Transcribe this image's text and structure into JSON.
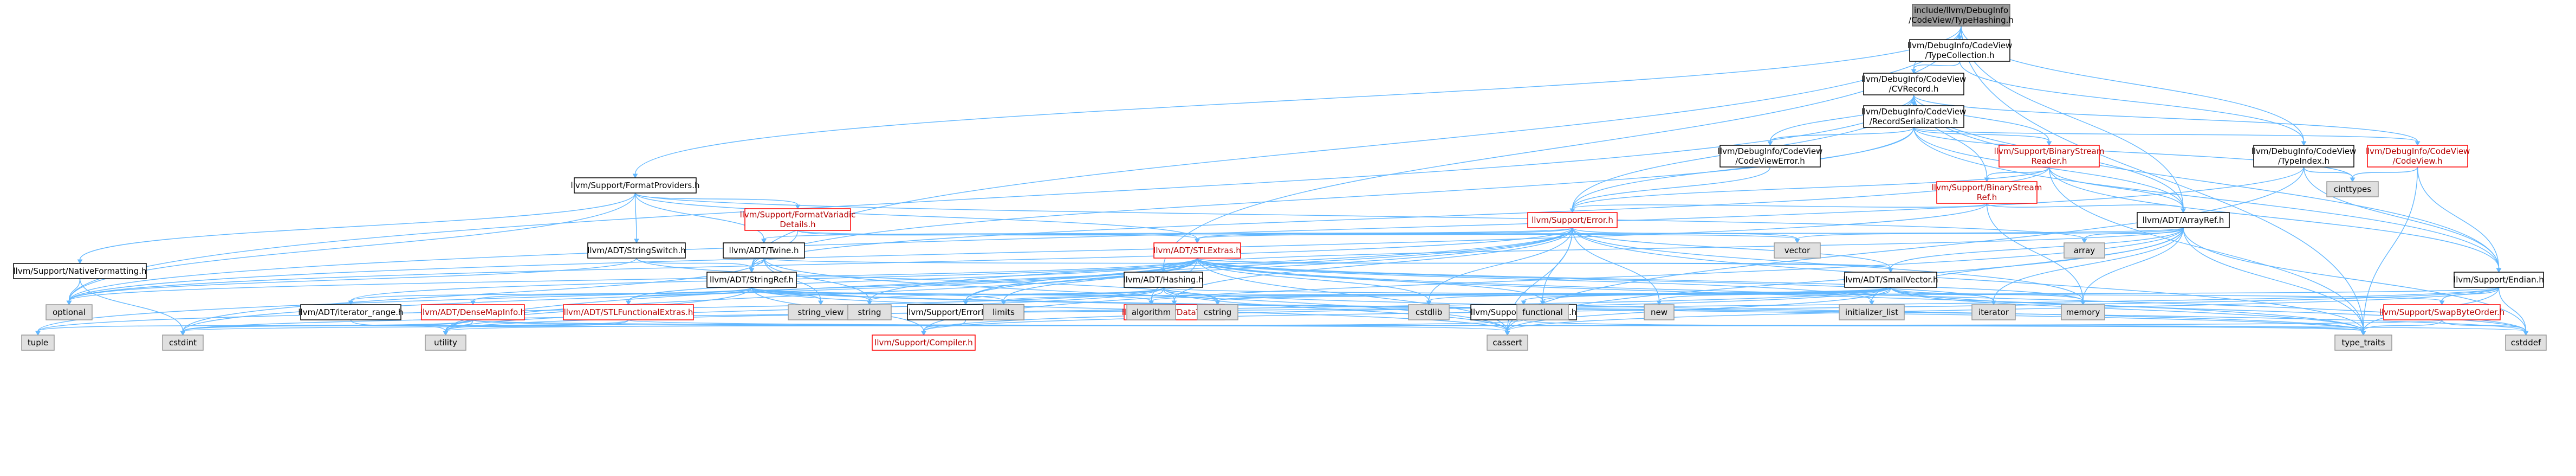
{
  "colors": {
    "edge": "#63b8ff",
    "root_fill": "#999999",
    "node_fill": "#ffffff",
    "node_border": "#000000",
    "ext_fill": "#e0e0e0",
    "ext_border": "#999999",
    "missing_border": "#ff0000",
    "missing_text": "#b60000"
  },
  "nodes": [
    {
      "id": "root",
      "lines": [
        "include/llvm/DebugInfo",
        "/CodeView/TypeHashing.h"
      ],
      "style": "root"
    },
    {
      "id": "typecollection",
      "lines": [
        "llvm/DebugInfo/CodeView",
        "/TypeCollection.h"
      ],
      "style": "normal"
    },
    {
      "id": "cvrecord",
      "lines": [
        "llvm/DebugInfo/CodeView",
        "/CVRecord.h"
      ],
      "style": "normal"
    },
    {
      "id": "recordser",
      "lines": [
        "llvm/DebugInfo/CodeView",
        "/RecordSerialization.h"
      ],
      "style": "normal"
    },
    {
      "id": "codevieweerror",
      "lines": [
        "llvm/DebugInfo/CodeView",
        "/CodeViewError.h"
      ],
      "style": "normal"
    },
    {
      "id": "bsreader",
      "lines": [
        "llvm/Support/BinaryStream",
        "Reader.h"
      ],
      "style": "missing"
    },
    {
      "id": "codeview",
      "lines": [
        "llvm/DebugInfo/CodeView",
        "/CodeView.h"
      ],
      "style": "missing"
    },
    {
      "id": "typeindex",
      "lines": [
        "llvm/DebugInfo/CodeView",
        "/TypeIndex.h"
      ],
      "style": "normal"
    },
    {
      "id": "bsref",
      "lines": [
        "llvm/Support/BinaryStream",
        "Ref.h"
      ],
      "style": "missing"
    },
    {
      "id": "formatproviders",
      "lines": [
        "llvm/Support/FormatProviders.h"
      ],
      "style": "normal"
    },
    {
      "id": "formatvariadic",
      "lines": [
        "llvm/Support/FormatVariadic",
        "Details.h"
      ],
      "style": "missing"
    },
    {
      "id": "error",
      "lines": [
        "llvm/Support/Error.h"
      ],
      "style": "missing"
    },
    {
      "id": "arrayref",
      "lines": [
        "llvm/ADT/ArrayRef.h"
      ],
      "style": "normal"
    },
    {
      "id": "stringswitch",
      "lines": [
        "llvm/ADT/StringSwitch.h"
      ],
      "style": "normal"
    },
    {
      "id": "twine",
      "lines": [
        "llvm/ADT/Twine.h"
      ],
      "style": "normal"
    },
    {
      "id": "stlextras",
      "lines": [
        "llvm/ADT/STLExtras.h"
      ],
      "style": "missing"
    },
    {
      "id": "nativeformatting",
      "lines": [
        "llvm/Support/NativeFormatting.h"
      ],
      "style": "normal"
    },
    {
      "id": "stringref",
      "lines": [
        "llvm/ADT/StringRef.h"
      ],
      "style": "normal"
    },
    {
      "id": "hashing",
      "lines": [
        "llvm/ADT/Hashing.h"
      ],
      "style": "normal"
    },
    {
      "id": "smallvector",
      "lines": [
        "llvm/ADT/SmallVector.h"
      ],
      "style": "normal"
    },
    {
      "id": "endian",
      "lines": [
        "llvm/Support/Endian.h"
      ],
      "style": "normal"
    },
    {
      "id": "iterator_range",
      "lines": [
        "llvm/ADT/iterator_range.h"
      ],
      "style": "normal"
    },
    {
      "id": "densemapinfo",
      "lines": [
        "llvm/ADT/DenseMapInfo.h"
      ],
      "style": "missing"
    },
    {
      "id": "stlfunctional",
      "lines": [
        "llvm/ADT/STLFunctionalExtras.h"
      ],
      "style": "missing"
    },
    {
      "id": "errorhandling",
      "lines": [
        "llvm/Support/ErrorHandling.h"
      ],
      "style": "normal"
    },
    {
      "id": "datatypes",
      "lines": [
        "llvm/Support/DataTypes.h"
      ],
      "style": "missing"
    },
    {
      "id": "typetraits_llvm",
      "lines": [
        "llvm/Support/type_traits.h"
      ],
      "style": "normal"
    },
    {
      "id": "swapbyteorder",
      "lines": [
        "llvm/Support/SwapByteOrder.h"
      ],
      "style": "missing"
    },
    {
      "id": "compiler",
      "lines": [
        "llvm/Support/Compiler.h"
      ],
      "style": "missing"
    },
    {
      "id": "cinttypes",
      "lines": [
        "cinttypes"
      ],
      "style": "ext"
    },
    {
      "id": "vector",
      "lines": [
        "vector"
      ],
      "style": "ext"
    },
    {
      "id": "array",
      "lines": [
        "array"
      ],
      "style": "ext"
    },
    {
      "id": "optional",
      "lines": [
        "optional"
      ],
      "style": "ext"
    },
    {
      "id": "string_view",
      "lines": [
        "string_view"
      ],
      "style": "ext"
    },
    {
      "id": "string",
      "lines": [
        "string"
      ],
      "style": "ext"
    },
    {
      "id": "limits",
      "lines": [
        "limits"
      ],
      "style": "ext"
    },
    {
      "id": "algorithm",
      "lines": [
        "algorithm"
      ],
      "style": "ext"
    },
    {
      "id": "cstring",
      "lines": [
        "cstring"
      ],
      "style": "ext"
    },
    {
      "id": "cstdlib",
      "lines": [
        "cstdlib"
      ],
      "style": "ext"
    },
    {
      "id": "functional",
      "lines": [
        "functional"
      ],
      "style": "ext"
    },
    {
      "id": "new",
      "lines": [
        "new"
      ],
      "style": "ext"
    },
    {
      "id": "initializer_list",
      "lines": [
        "initializer_list"
      ],
      "style": "ext"
    },
    {
      "id": "iterator",
      "lines": [
        "iterator"
      ],
      "style": "ext"
    },
    {
      "id": "memory",
      "lines": [
        "memory"
      ],
      "style": "ext"
    },
    {
      "id": "tuple",
      "lines": [
        "tuple"
      ],
      "style": "ext"
    },
    {
      "id": "cstdint",
      "lines": [
        "cstdint"
      ],
      "style": "ext"
    },
    {
      "id": "utility",
      "lines": [
        "utility"
      ],
      "style": "ext"
    },
    {
      "id": "cassert",
      "lines": [
        "cassert"
      ],
      "style": "ext"
    },
    {
      "id": "type_traits",
      "lines": [
        "type_traits"
      ],
      "style": "ext"
    },
    {
      "id": "cstddef",
      "lines": [
        "cstddef"
      ],
      "style": "ext"
    }
  ],
  "edges": [
    [
      "root",
      "typecollection"
    ],
    [
      "root",
      "cvrecord"
    ],
    [
      "root",
      "typeindex"
    ],
    [
      "root",
      "formatproviders"
    ],
    [
      "root",
      "arrayref"
    ],
    [
      "root",
      "hashing"
    ],
    [
      "root",
      "stringref"
    ],
    [
      "root",
      "type_traits"
    ],
    [
      "typecollection",
      "cvrecord"
    ],
    [
      "typecollection",
      "typeindex"
    ],
    [
      "cvrecord",
      "recordser"
    ],
    [
      "cvrecord",
      "codevieweerror"
    ],
    [
      "cvrecord",
      "codeview"
    ],
    [
      "cvrecord",
      "bsreader"
    ],
    [
      "cvrecord",
      "bsref"
    ],
    [
      "cvrecord",
      "error"
    ],
    [
      "cvrecord",
      "arrayref"
    ],
    [
      "cvrecord",
      "endian"
    ],
    [
      "cvrecord",
      "optional"
    ],
    [
      "recordser",
      "codevieweerror"
    ],
    [
      "recordser",
      "codeview"
    ],
    [
      "recordser",
      "bsreader"
    ],
    [
      "recordser",
      "error"
    ],
    [
      "recordser",
      "arrayref"
    ],
    [
      "recordser",
      "stringref"
    ],
    [
      "recordser",
      "endian"
    ],
    [
      "recordser",
      "cinttypes"
    ],
    [
      "codevieweerror",
      "error"
    ],
    [
      "bsreader",
      "bsref"
    ],
    [
      "bsreader",
      "error"
    ],
    [
      "bsreader",
      "arrayref"
    ],
    [
      "bsreader",
      "endian"
    ],
    [
      "bsreader",
      "type_traits"
    ],
    [
      "bsreader",
      "stringref"
    ],
    [
      "codeview",
      "endian"
    ],
    [
      "codeview",
      "cinttypes"
    ],
    [
      "codeview",
      "type_traits"
    ],
    [
      "typeindex",
      "endian"
    ],
    [
      "typeindex",
      "cinttypes"
    ],
    [
      "typeindex",
      "cassert"
    ],
    [
      "typeindex",
      "optional"
    ],
    [
      "bsref",
      "arrayref"
    ],
    [
      "bsref",
      "error"
    ],
    [
      "bsref",
      "memory"
    ],
    [
      "bsref",
      "optional"
    ],
    [
      "formatproviders",
      "formatvariadic"
    ],
    [
      "formatproviders",
      "nativeformatting"
    ],
    [
      "formatproviders",
      "stringswitch"
    ],
    [
      "formatproviders",
      "twine"
    ],
    [
      "formatproviders",
      "stlextras"
    ],
    [
      "formatproviders",
      "array"
    ],
    [
      "formatproviders",
      "optional"
    ],
    [
      "formatvariadic",
      "stlextras"
    ],
    [
      "formatvariadic",
      "stringref"
    ],
    [
      "formatvariadic",
      "vector"
    ],
    [
      "error",
      "stlextras"
    ],
    [
      "error",
      "smallvector"
    ],
    [
      "error",
      "twine"
    ],
    [
      "error",
      "errorhandling"
    ],
    [
      "error",
      "string"
    ],
    [
      "error",
      "vector"
    ],
    [
      "error",
      "memory"
    ],
    [
      "error",
      "functional"
    ],
    [
      "error",
      "cstdlib"
    ],
    [
      "error",
      "new"
    ],
    [
      "error",
      "cassert"
    ],
    [
      "error",
      "optional"
    ],
    [
      "error",
      "type_traits"
    ],
    [
      "error",
      "utility"
    ],
    [
      "error",
      "datatypes"
    ],
    [
      "arrayref",
      "hashing"
    ],
    [
      "arrayref",
      "smallvector"
    ],
    [
      "arrayref",
      "stlextras"
    ],
    [
      "arrayref",
      "array"
    ],
    [
      "arrayref",
      "vector"
    ],
    [
      "arrayref",
      "iterator"
    ],
    [
      "arrayref",
      "memory"
    ],
    [
      "arrayref",
      "cassert"
    ],
    [
      "arrayref",
      "cstddef"
    ],
    [
      "arrayref",
      "initializer_list"
    ],
    [
      "arrayref",
      "type_traits"
    ],
    [
      "arrayref",
      "compiler"
    ],
    [
      "stringswitch",
      "stringref"
    ],
    [
      "stringswitch",
      "optional"
    ],
    [
      "stringswitch",
      "cstring"
    ],
    [
      "twine",
      "smallvector"
    ],
    [
      "twine",
      "stringref"
    ],
    [
      "twine",
      "string"
    ],
    [
      "twine",
      "string_view"
    ],
    [
      "twine",
      "cassert"
    ],
    [
      "twine",
      "cstdint"
    ],
    [
      "stlextras",
      "hashing"
    ],
    [
      "stlextras",
      "iterator_range"
    ],
    [
      "stlextras",
      "stlfunctional"
    ],
    [
      "stlextras",
      "errorhandling"
    ],
    [
      "stlextras",
      "algorithm"
    ],
    [
      "stlextras",
      "cassert"
    ],
    [
      "stlextras",
      "cstddef"
    ],
    [
      "stlextras",
      "cstdint"
    ],
    [
      "stlextras",
      "cstdlib"
    ],
    [
      "stlextras",
      "functional"
    ],
    [
      "stlextras",
      "initializer_list"
    ],
    [
      "stlextras",
      "iterator"
    ],
    [
      "stlextras",
      "limits"
    ],
    [
      "stlextras",
      "memory"
    ],
    [
      "stlextras",
      "optional"
    ],
    [
      "stlextras",
      "tuple"
    ],
    [
      "stlextras",
      "type_traits"
    ],
    [
      "stlextras",
      "utility"
    ],
    [
      "stlextras",
      "smallvector"
    ],
    [
      "nativeformatting",
      "cstdint"
    ],
    [
      "nativeformatting",
      "optional"
    ],
    [
      "stringref",
      "densemapinfo"
    ],
    [
      "stringref",
      "iterator_range"
    ],
    [
      "stringref",
      "stlfunctional"
    ],
    [
      "stringref",
      "compiler"
    ],
    [
      "stringref",
      "algorithm"
    ],
    [
      "stringref",
      "cassert"
    ],
    [
      "stringref",
      "cstddef"
    ],
    [
      "stringref",
      "cstring"
    ],
    [
      "stringref",
      "limits"
    ],
    [
      "stringref",
      "string"
    ],
    [
      "stringref",
      "string_view"
    ],
    [
      "stringref",
      "type_traits"
    ],
    [
      "stringref",
      "utility"
    ],
    [
      "hashing",
      "errorhandling"
    ],
    [
      "hashing",
      "datatypes"
    ],
    [
      "hashing",
      "swapbyteorder"
    ],
    [
      "hashing",
      "type_traits"
    ],
    [
      "hashing",
      "algorithm"
    ],
    [
      "hashing",
      "cassert"
    ],
    [
      "hashing",
      "cstring"
    ],
    [
      "hashing",
      "string"
    ],
    [
      "hashing",
      "tuple"
    ],
    [
      "hashing",
      "utility"
    ],
    [
      "smallvector",
      "compiler"
    ],
    [
      "smallvector",
      "typetraits_llvm"
    ],
    [
      "smallvector",
      "algorithm"
    ],
    [
      "smallvector",
      "cassert"
    ],
    [
      "smallvector",
      "cstddef"
    ],
    [
      "smallvector",
      "cstdlib"
    ],
    [
      "smallvector",
      "cstring"
    ],
    [
      "smallvector",
      "functional"
    ],
    [
      "smallvector",
      "initializer_list"
    ],
    [
      "smallvector",
      "iterator"
    ],
    [
      "smallvector",
      "limits"
    ],
    [
      "smallvector",
      "memory"
    ],
    [
      "smallvector",
      "new"
    ],
    [
      "smallvector",
      "type_traits"
    ],
    [
      "smallvector",
      "utility"
    ],
    [
      "endian",
      "compiler"
    ],
    [
      "endian",
      "swapbyteorder"
    ],
    [
      "endian",
      "cassert"
    ],
    [
      "endian",
      "cstddef"
    ],
    [
      "endian",
      "cstdint"
    ],
    [
      "endian",
      "cstring"
    ],
    [
      "endian",
      "type_traits"
    ],
    [
      "iterator_range",
      "utility"
    ],
    [
      "densemapinfo",
      "cassert"
    ],
    [
      "densemapinfo",
      "cstddef"
    ],
    [
      "densemapinfo",
      "cstdint"
    ],
    [
      "densemapinfo",
      "tuple"
    ],
    [
      "densemapinfo",
      "utility"
    ],
    [
      "stlfunctional",
      "type_traits"
    ],
    [
      "stlfunctional",
      "utility"
    ],
    [
      "stlfunctional",
      "cstdint"
    ],
    [
      "errorhandling",
      "compiler"
    ],
    [
      "typetraits_llvm",
      "type_traits"
    ],
    [
      "typetraits_llvm",
      "utility"
    ],
    [
      "swapbyteorder",
      "cstddef"
    ],
    [
      "swapbyteorder",
      "cstdint"
    ],
    [
      "swapbyteorder",
      "type_traits"
    ]
  ]
}
